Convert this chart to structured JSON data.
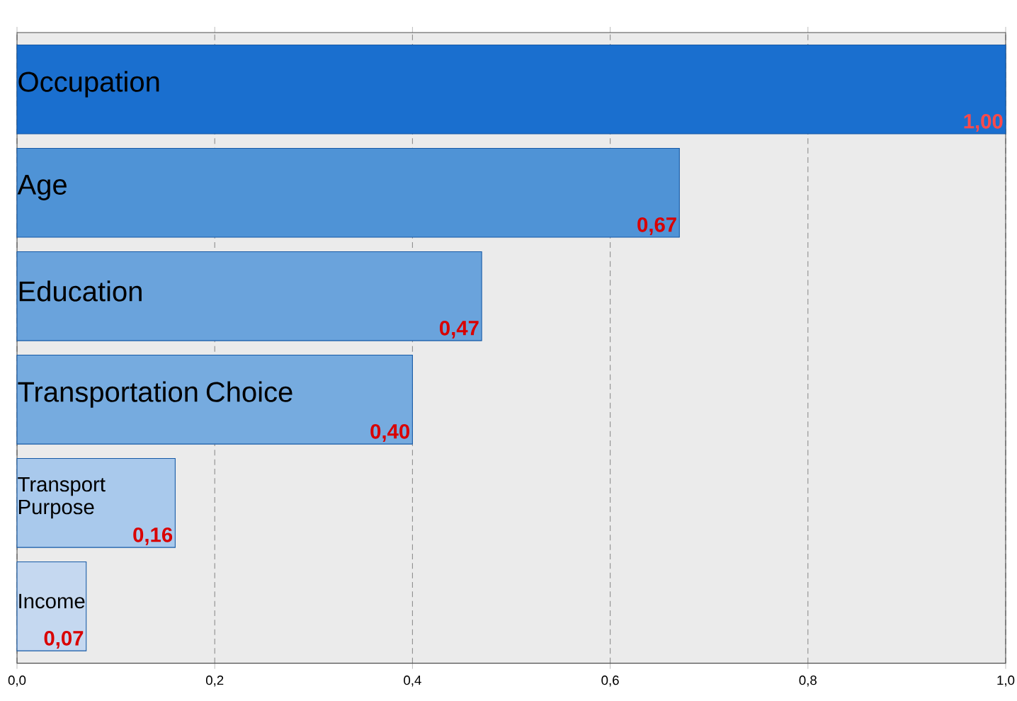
{
  "chart_data": {
    "type": "bar",
    "orientation": "horizontal",
    "categories": [
      "Occupation",
      "Age",
      "Education",
      "Transportation Choice",
      "Transport Purpose",
      "Income"
    ],
    "values": [
      1.0,
      0.67,
      0.47,
      0.4,
      0.16,
      0.07
    ],
    "value_labels": [
      "1,00",
      "0,67",
      "0,47",
      "0,40",
      "0,16",
      "0,07"
    ],
    "colors": [
      "#1a6fcf",
      "#4f93d6",
      "#6aa3dc",
      "#76abdf",
      "#a9c9ec",
      "#c5d8f0"
    ],
    "xlim": [
      0,
      1
    ],
    "xticks": [
      {
        "value": 0,
        "label": "0,0"
      },
      {
        "value": 0.2,
        "label": "0,2"
      },
      {
        "value": 0.4,
        "label": "0,4"
      },
      {
        "value": 0.6,
        "label": "0,6"
      },
      {
        "value": 0.8,
        "label": "0,8"
      },
      {
        "value": 1.0,
        "label": "1,0"
      }
    ],
    "grid": "x"
  }
}
